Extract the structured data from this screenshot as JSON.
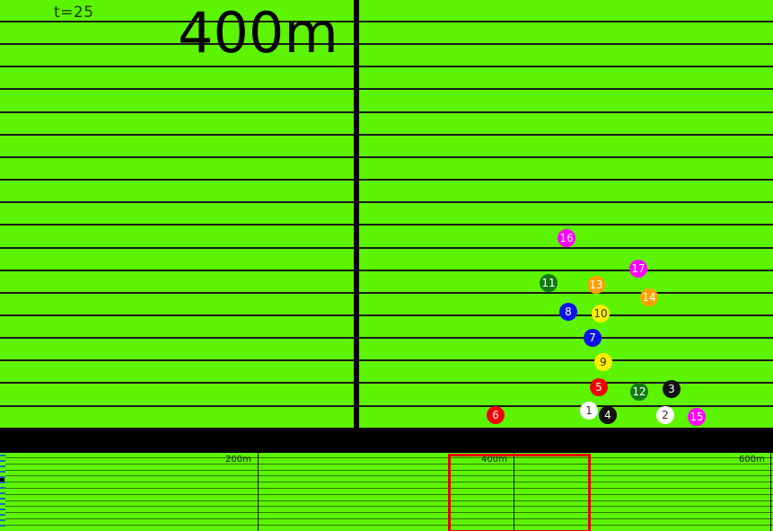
{
  "hud": {
    "time": "t=25",
    "distance": "400m"
  },
  "minimap": {
    "labels": [
      "200m",
      "400m",
      "600m"
    ]
  },
  "runners": [
    {
      "id": "1",
      "bib": "1",
      "color": "#ffffff",
      "text_color": "#333333"
    },
    {
      "id": "2",
      "bib": "2",
      "color": "#ffffff",
      "text_color": "#333333"
    },
    {
      "id": "3",
      "bib": "3",
      "color": "#111111",
      "text_color": "#ffffff"
    },
    {
      "id": "4",
      "bib": "4",
      "color": "#111111",
      "text_color": "#ffffff"
    },
    {
      "id": "5",
      "bib": "5",
      "color": "#ee0000",
      "text_color": "#ffffff"
    },
    {
      "id": "6",
      "bib": "6",
      "color": "#ee0000",
      "text_color": "#ffffff"
    },
    {
      "id": "7",
      "bib": "7",
      "color": "#0a14e6",
      "text_color": "#ffffff"
    },
    {
      "id": "8",
      "bib": "8",
      "color": "#0a14e6",
      "text_color": "#ffffff"
    },
    {
      "id": "9",
      "bib": "9",
      "color": "#ffee00",
      "text_color": "#333333"
    },
    {
      "id": "10",
      "bib": "10",
      "color": "#ffee00",
      "text_color": "#333333"
    },
    {
      "id": "11",
      "bib": "11",
      "color": "#117a11",
      "text_color": "#ffffff"
    },
    {
      "id": "12",
      "bib": "12",
      "color": "#117a11",
      "text_color": "#ffffff"
    },
    {
      "id": "13",
      "bib": "13",
      "color": "#ffa000",
      "text_color": "#ffffff"
    },
    {
      "id": "14",
      "bib": "14",
      "color": "#ffa000",
      "text_color": "#ffffff"
    },
    {
      "id": "15",
      "bib": "15",
      "color": "#ff00ff",
      "text_color": "#ffffff"
    },
    {
      "id": "16",
      "bib": "16",
      "color": "#ff00ff",
      "text_color": "#ffffff"
    },
    {
      "id": "17",
      "bib": "17",
      "color": "#ff00ff",
      "text_color": "#ffffff"
    }
  ],
  "colors": {
    "track": "#5cf400",
    "viewport_box": "#e00000"
  }
}
